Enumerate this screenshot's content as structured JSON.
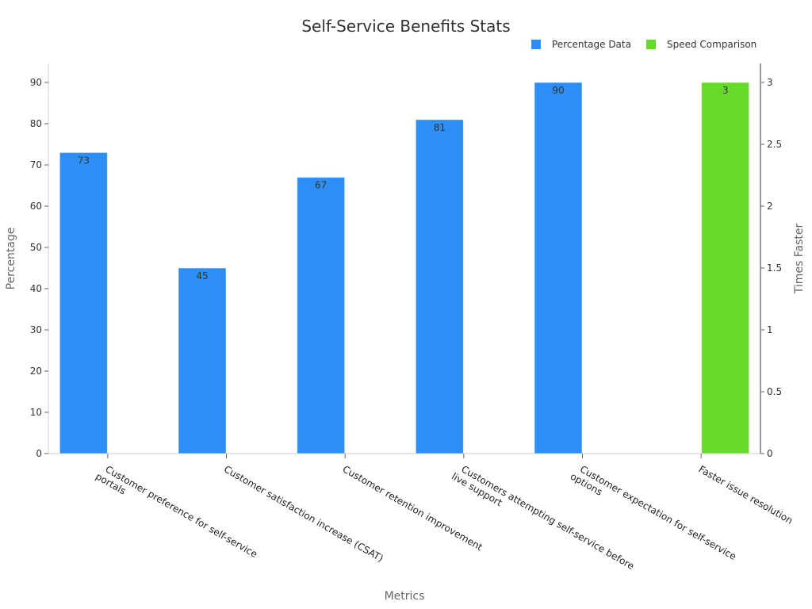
{
  "chart_data": {
    "type": "bar",
    "title": "Self-Service Benefits Stats",
    "xlabel": "Metrics",
    "ylabel": "Percentage",
    "y2label": "Times Faster",
    "ylim": [
      0,
      90
    ],
    "y2lim": [
      0,
      3
    ],
    "yticks": [
      0,
      10,
      20,
      30,
      40,
      50,
      60,
      70,
      80,
      90
    ],
    "y2ticks": [
      0,
      0.5,
      1,
      1.5,
      2,
      2.5,
      3
    ],
    "grid": false,
    "legend_position": "top-right",
    "categories": [
      [
        "Customer preference for self-service",
        "portals"
      ],
      [
        "Customer satisfaction increase (CSAT)"
      ],
      [
        "Customer retention improvement"
      ],
      [
        "Customers attempting self-service before",
        "live support"
      ],
      [
        "Customer expectation for self-service",
        "options"
      ],
      [
        "Faster issue resolution"
      ]
    ],
    "series": [
      {
        "name": "Percentage Data",
        "axis": "left",
        "color": "#2d8ff5",
        "values": [
          73,
          45,
          67,
          81,
          90,
          null
        ]
      },
      {
        "name": "Speed Comparison",
        "axis": "right",
        "color": "#66d92b",
        "values": [
          null,
          null,
          null,
          null,
          null,
          3
        ]
      }
    ]
  }
}
